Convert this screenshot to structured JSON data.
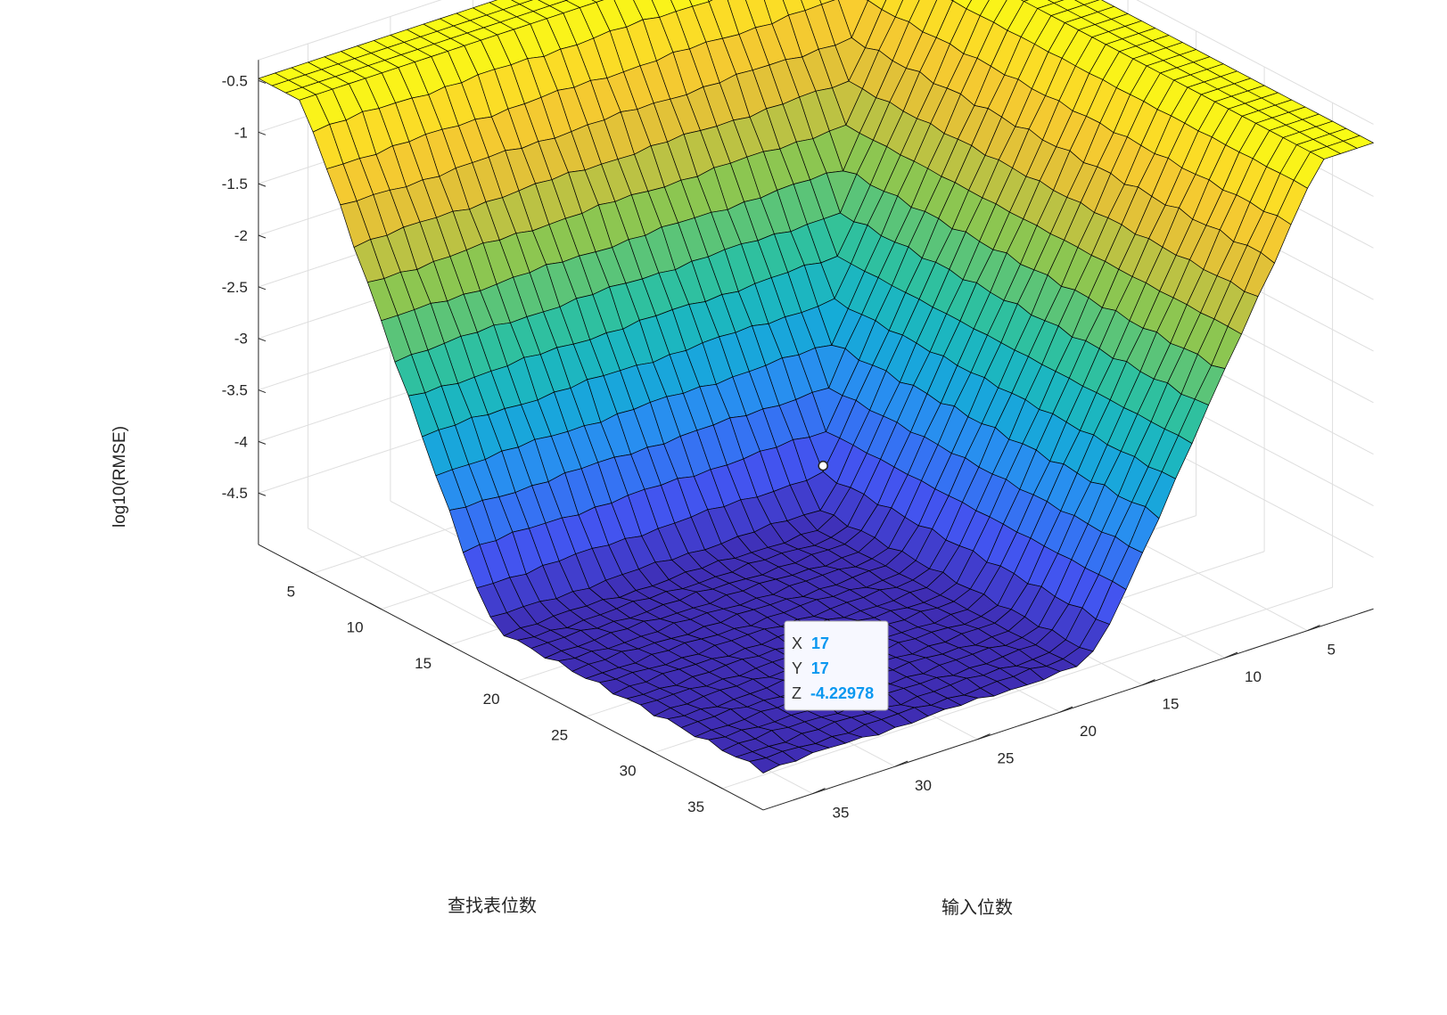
{
  "chart_data": {
    "type": "surface",
    "title": "",
    "xlabel": "输入位数",
    "ylabel": "查找表位数",
    "zlabel": "log10(RMSE)",
    "x_range": [
      1,
      38
    ],
    "y_range": [
      1,
      38
    ],
    "zlim": [
      -5,
      -0.3
    ],
    "x_ticks": [
      5,
      10,
      15,
      20,
      25,
      30,
      35
    ],
    "y_ticks": [
      5,
      10,
      15,
      20,
      25,
      30,
      35
    ],
    "z_ticks": [
      -4.5,
      -4,
      -3.5,
      -3,
      -2.5,
      -2,
      -1.5,
      -1,
      -0.5
    ],
    "grid": true,
    "colormap": "parula",
    "colormap_stops": [
      "#3e26a8",
      "#4353ef",
      "#2c88f5",
      "#12b1d2",
      "#33c299",
      "#8ac652",
      "#dcbf3a",
      "#fcce2e",
      "#f9fb15"
    ],
    "edge_color": "#000000",
    "surface_model": "z = -0.30103*min(x,y) + 0.8 (approx.), floor ≈ -4.6",
    "z_samples": [
      {
        "x": 1,
        "y": 1,
        "z": -0.51
      },
      {
        "x": 1,
        "y": 38,
        "z": -0.6
      },
      {
        "x": 38,
        "y": 1,
        "z": -0.6
      },
      {
        "x": 5,
        "y": 30,
        "z": -0.75
      },
      {
        "x": 10,
        "y": 30,
        "z": -2.2
      },
      {
        "x": 15,
        "y": 30,
        "z": -3.7
      },
      {
        "x": 30,
        "y": 30,
        "z": -4.62
      },
      {
        "x": 38,
        "y": 38,
        "z": -4.62
      }
    ],
    "datatip": {
      "x": "17",
      "y": "17",
      "z": "-4.22978"
    }
  },
  "datatip": {
    "x_label": "X",
    "x_value": "17",
    "y_label": "Y",
    "y_value": "17",
    "z_label": "Z",
    "z_value": "-4.22978"
  }
}
